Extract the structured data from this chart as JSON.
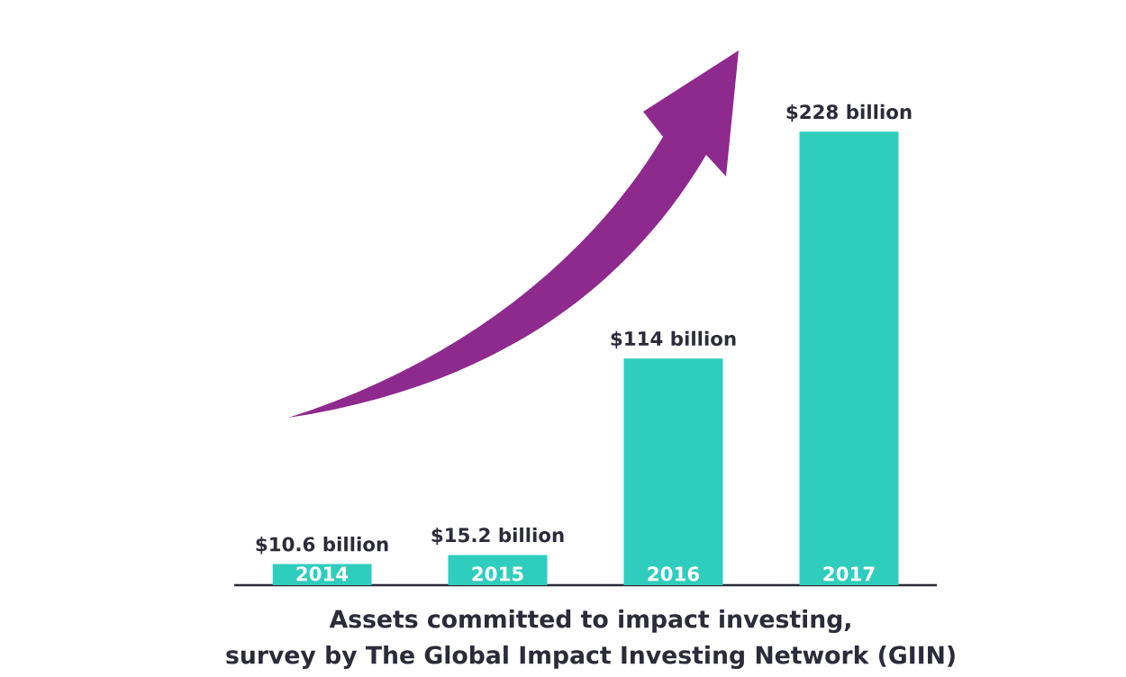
{
  "chart_data": {
    "type": "bar",
    "title": "Assets committed to impact investing,",
    "subtitle": "survey by The Global Impact Investing Network (GIIN)",
    "categories": [
      "2014",
      "2015",
      "2016",
      "2017"
    ],
    "values": [
      10.6,
      15.2,
      114,
      228
    ],
    "value_labels": [
      "$10.6 billion",
      "$15.2 billion",
      "$114 billion",
      "$228 billion"
    ],
    "color": "#2fcdbd"
  }
}
